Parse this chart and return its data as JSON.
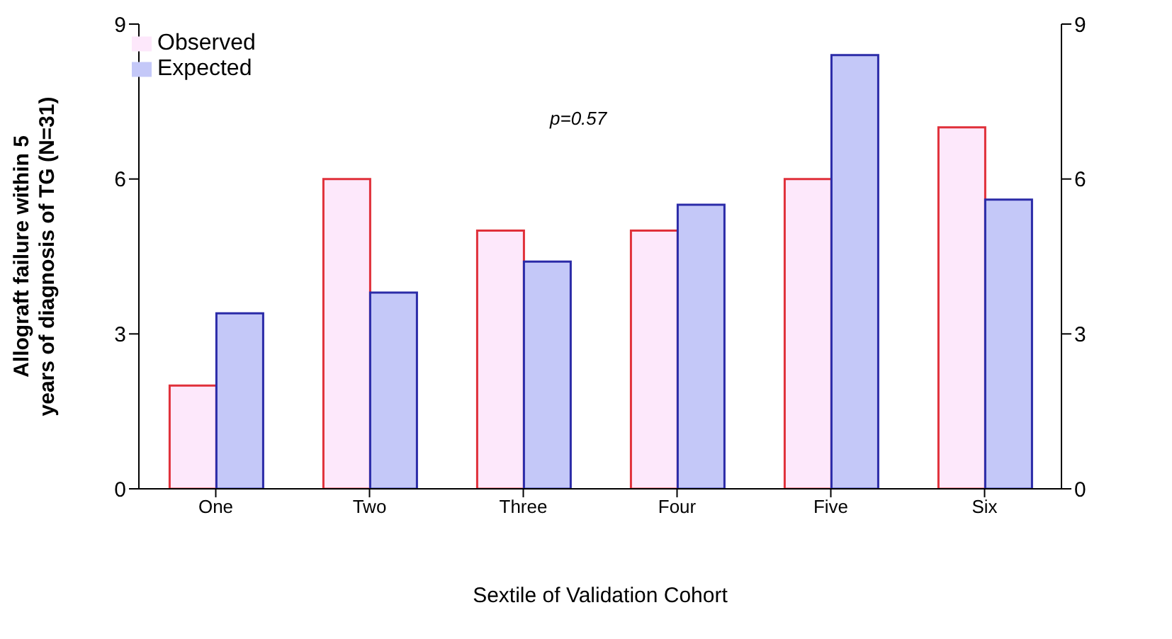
{
  "chart_data": {
    "type": "bar",
    "xlabel": "Sextile of Validation Cohort",
    "ylabel": "Allograft failure within 5 years of diagnosis of TG (N=31)",
    "categories": [
      "One",
      "Two",
      "Three",
      "Four",
      "Five",
      "Six"
    ],
    "series": [
      {
        "name": "Observed",
        "color": "#fde8fb",
        "values": [
          2,
          6,
          5,
          5,
          6,
          7
        ]
      },
      {
        "name": "Expected",
        "color": "#c4c8f8",
        "values": [
          3.4,
          3.8,
          4.4,
          5.5,
          8.4,
          5.6
        ]
      }
    ],
    "ylim": [
      0,
      9
    ],
    "yticks": [
      0,
      3,
      6,
      9
    ],
    "y2lim": [
      0,
      9
    ],
    "y2ticks": [
      0,
      3,
      6,
      9
    ],
    "annotations": [
      "p=0.57"
    ],
    "legend": "top left",
    "grid": false
  }
}
